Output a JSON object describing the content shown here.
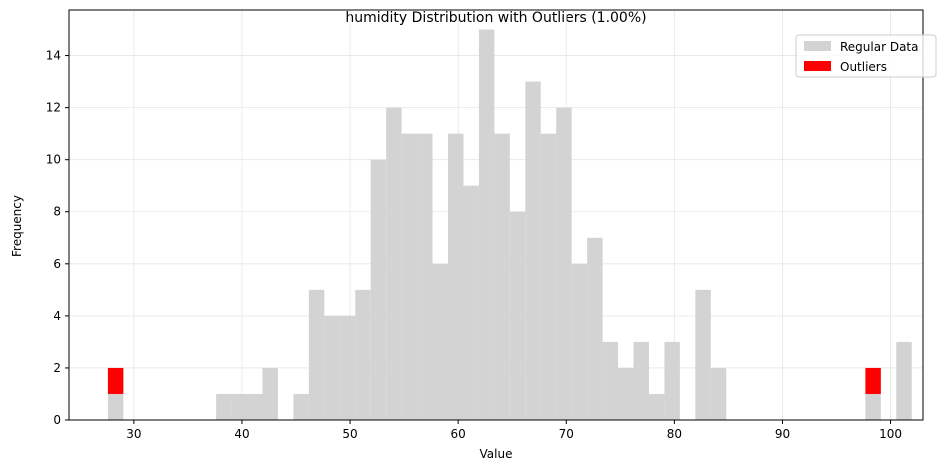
{
  "chart_data": {
    "type": "bar",
    "title": "humidity Distribution with Outliers (1.00%)",
    "xlabel": "Value",
    "ylabel": "Frequency",
    "xlim": [
      24,
      103
    ],
    "ylim": [
      0,
      15.75
    ],
    "xticks": [
      30,
      40,
      50,
      60,
      70,
      80,
      90,
      100
    ],
    "yticks": [
      0,
      2,
      4,
      6,
      8,
      10,
      12,
      14
    ],
    "grid": true,
    "legend_position": "top-right",
    "colors": {
      "regular": "#d3d3d3",
      "outliers": "#ff0000"
    },
    "bin_start": 27.6,
    "bin_width": 1.43,
    "series": [
      {
        "name": "Regular Data",
        "values": [
          1,
          0,
          0,
          0,
          0,
          0,
          0,
          1,
          1,
          1,
          2,
          0,
          1,
          5,
          4,
          4,
          5,
          10,
          12,
          11,
          11,
          6,
          11,
          9,
          15,
          11,
          8,
          13,
          11,
          12,
          6,
          7,
          3,
          2,
          3,
          1,
          3,
          0,
          5,
          2,
          0,
          0,
          0,
          0,
          0,
          0,
          0,
          0,
          0,
          1,
          0,
          3
        ]
      },
      {
        "name": "Outliers",
        "stacked_on": "Regular Data",
        "values": [
          1,
          0,
          0,
          0,
          0,
          0,
          0,
          0,
          0,
          0,
          0,
          0,
          0,
          0,
          0,
          0,
          0,
          0,
          0,
          0,
          0,
          0,
          0,
          0,
          0,
          0,
          0,
          0,
          0,
          0,
          0,
          0,
          0,
          0,
          0,
          0,
          0,
          0,
          0,
          0,
          0,
          0,
          0,
          0,
          0,
          0,
          0,
          0,
          0,
          1,
          0,
          0
        ]
      }
    ]
  }
}
